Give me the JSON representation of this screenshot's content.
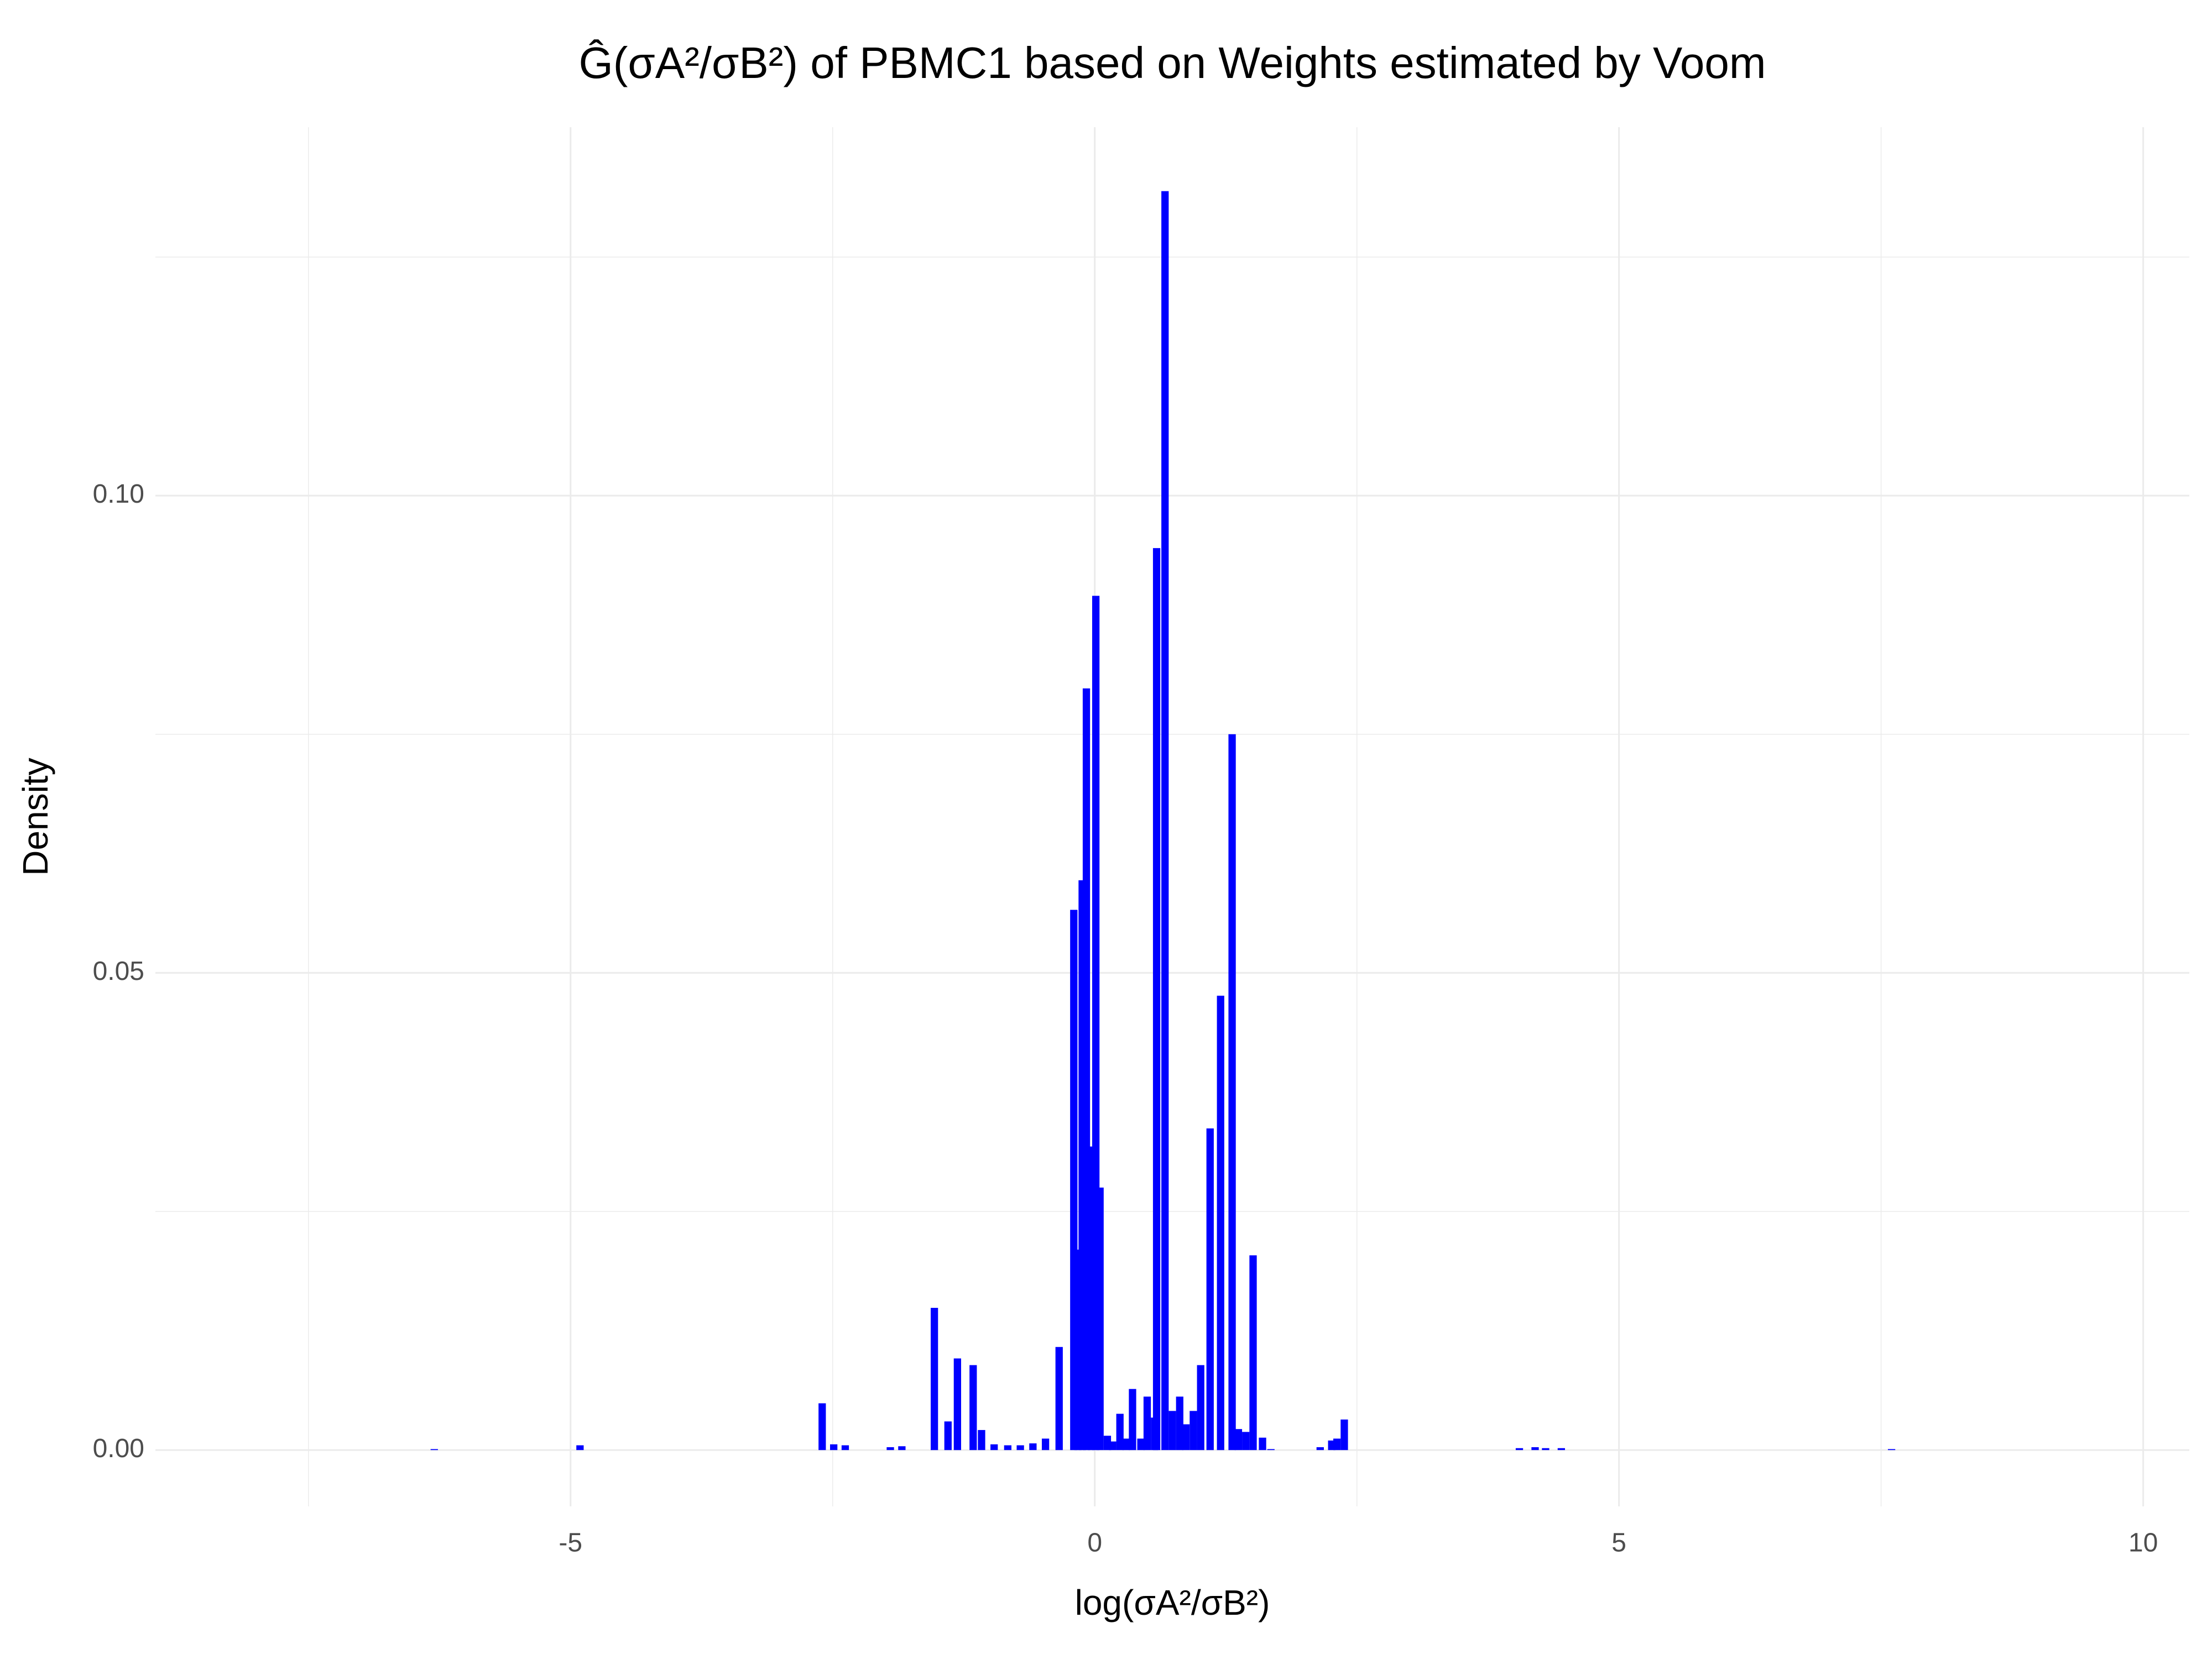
{
  "chart_data": {
    "type": "bar",
    "title": "Ĝ(σA²/σB²) of PBMC1 based on Weights estimated by Voom",
    "x_label": "log(σA²/σB²)",
    "y_label": "Density",
    "x": [
      -6.3,
      -4.91,
      -2.6,
      -2.49,
      -2.38,
      -1.95,
      -1.84,
      -1.53,
      -1.4,
      -1.31,
      -1.16,
      -1.08,
      -0.96,
      -0.83,
      -0.71,
      -0.59,
      -0.47,
      -0.34,
      -0.2,
      -0.16,
      -0.12,
      -0.08,
      -0.03,
      0.01,
      0.05,
      0.12,
      0.17,
      0.24,
      0.3,
      0.36,
      0.44,
      0.5,
      0.57,
      0.59,
      0.67,
      0.74,
      0.81,
      0.87,
      0.94,
      1.01,
      1.1,
      1.2,
      1.31,
      1.37,
      1.44,
      1.51,
      1.6,
      1.68,
      2.15,
      2.26,
      2.31,
      2.38,
      4.05,
      4.2,
      4.3,
      4.45,
      7.6
    ],
    "values": [
      0.0001,
      0.0005,
      0.0049,
      0.0006,
      0.0005,
      0.0003,
      0.0004,
      0.0149,
      0.003,
      0.0096,
      0.0089,
      0.0021,
      0.0006,
      0.0005,
      0.0005,
      0.0007,
      0.0012,
      0.0108,
      0.0566,
      0.021,
      0.0597,
      0.0798,
      0.0318,
      0.0895,
      0.0275,
      0.0015,
      0.0009,
      0.0038,
      0.0012,
      0.0064,
      0.0012,
      0.0056,
      0.0034,
      0.0945,
      0.1319,
      0.0041,
      0.0056,
      0.0027,
      0.0041,
      0.0089,
      0.0337,
      0.0476,
      0.075,
      0.0022,
      0.0019,
      0.0204,
      0.0013,
      0.0001,
      0.0003,
      0.001,
      0.0012,
      0.0032,
      0.0002,
      0.0003,
      0.0002,
      0.0002,
      0.0001
    ],
    "color": "#0000ff",
    "xlim": [
      -8.96,
      10.44
    ],
    "ylim": [
      -0.0059,
      0.1386
    ],
    "xticks": [
      -5,
      0,
      5,
      10
    ],
    "yticks": [
      {
        "value": 0,
        "label": "0.00"
      },
      {
        "value": 0.05,
        "label": "0.05"
      },
      {
        "value": 0.1,
        "label": "0.10"
      }
    ],
    "xminor": [
      -7.5,
      -2.5,
      2.5,
      7.5
    ],
    "yminor": [
      0.025,
      0.075,
      0.125
    ],
    "grid": true
  }
}
